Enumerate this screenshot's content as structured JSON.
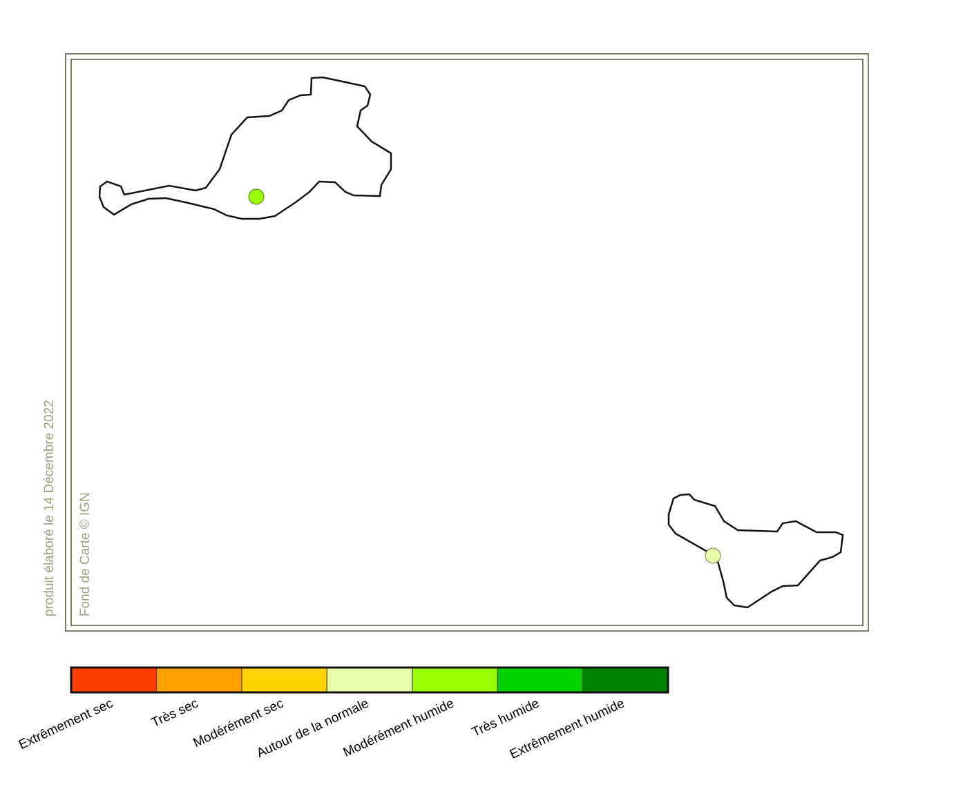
{
  "credits": {
    "date": "produit élaboré le 14 Décembre 2022",
    "source": "Fond de Carte © IGN"
  },
  "legend": {
    "items": [
      {
        "label": "Extrêmement sec",
        "color": "#ff3f00"
      },
      {
        "label": "Très sec",
        "color": "#ff9f00"
      },
      {
        "label": "Modérément sec",
        "color": "#ffd200"
      },
      {
        "label": "Autour de la normale",
        "color": "#e8ffaa"
      },
      {
        "label": "Modérément humide",
        "color": "#99ff00"
      },
      {
        "label": "Très humide",
        "color": "#00d200"
      },
      {
        "label": "Extrêmement humide",
        "color": "#008200"
      }
    ]
  }
}
